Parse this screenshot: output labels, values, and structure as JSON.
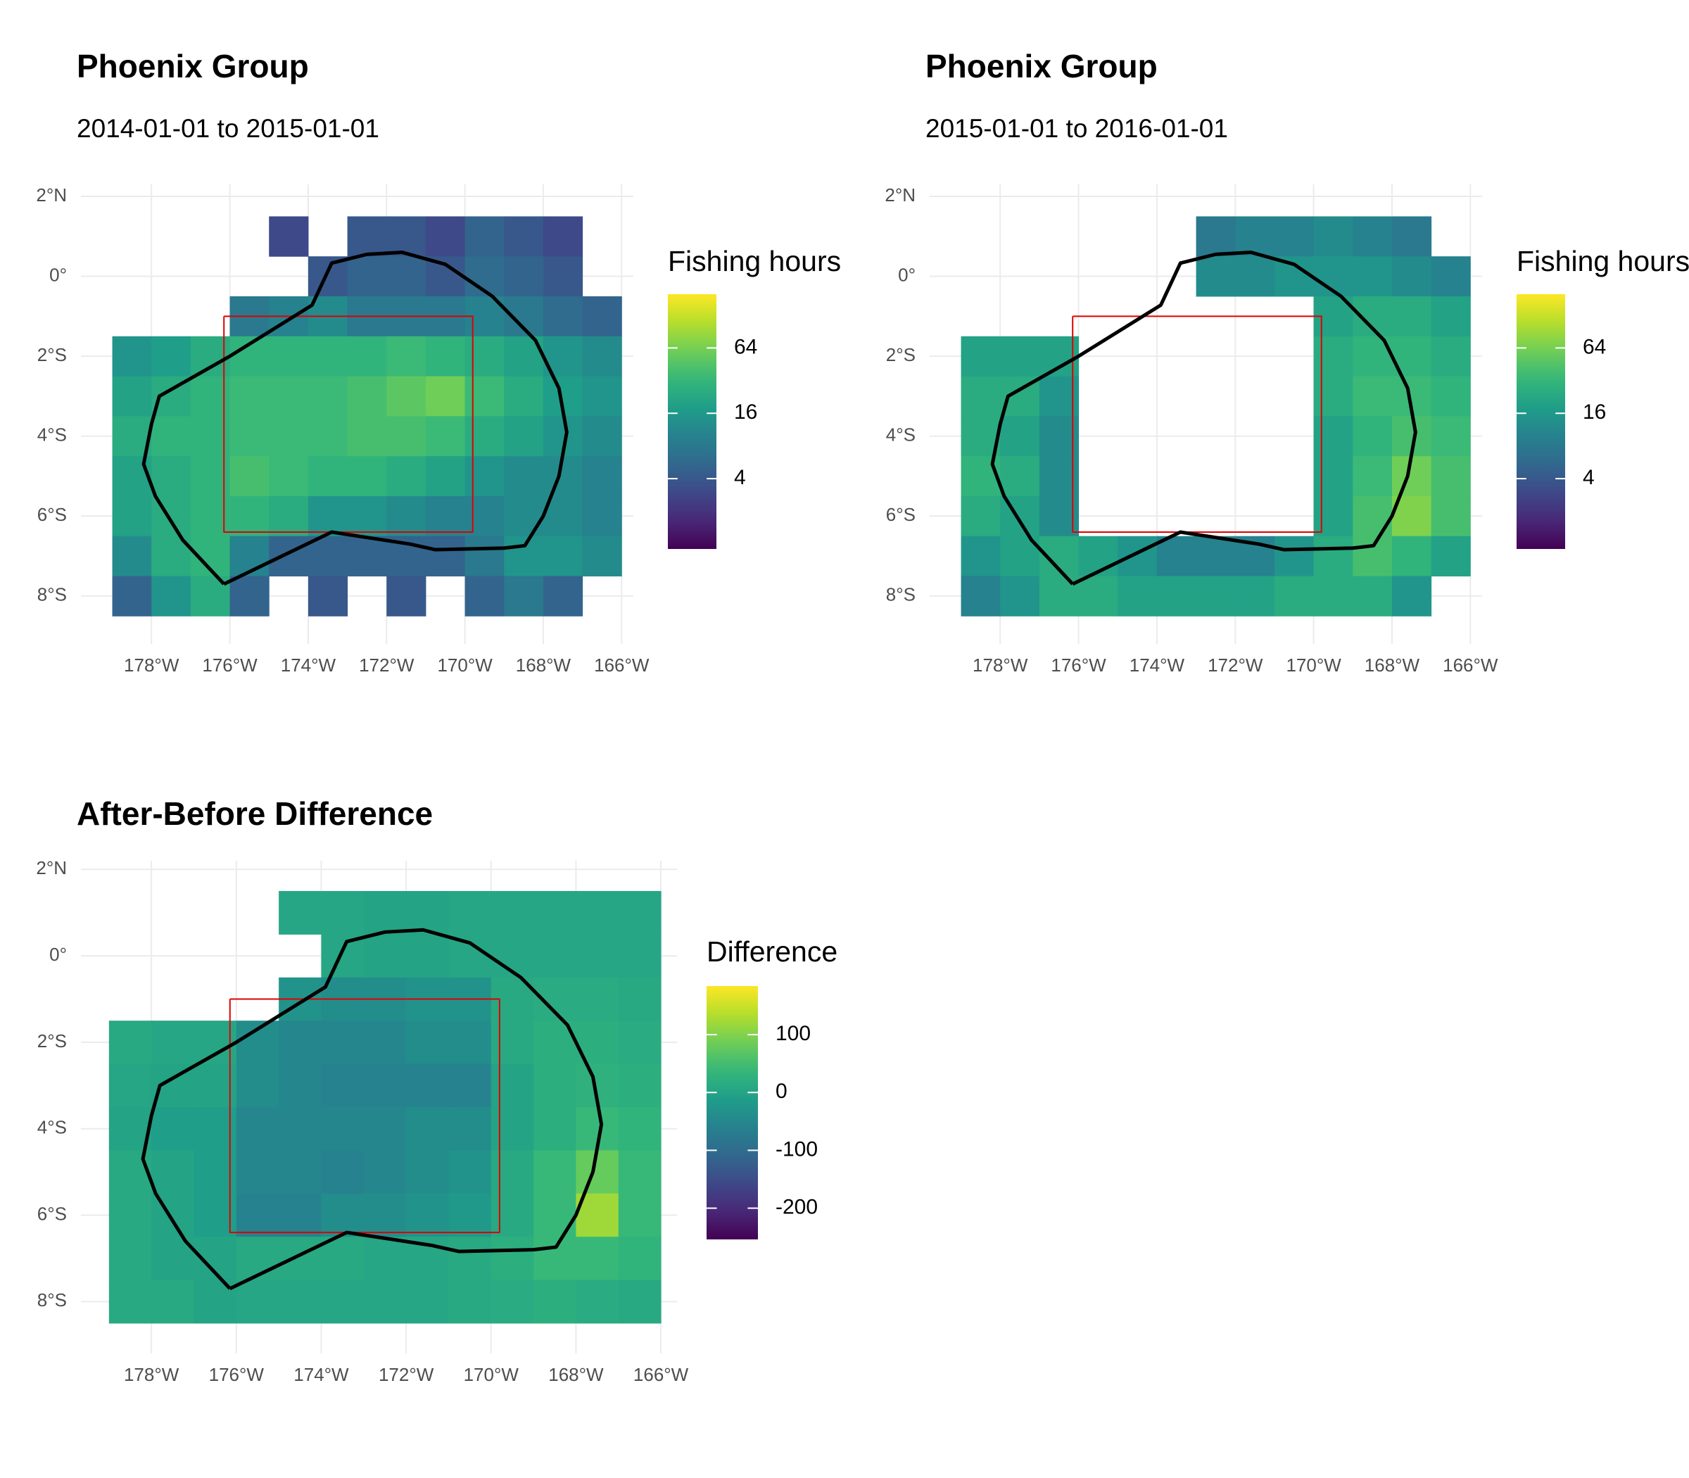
{
  "chart_data": [
    {
      "type": "heatmap",
      "title": "Phoenix Group",
      "subtitle": "2014-01-01 to 2015-01-01",
      "x": [
        -178.5,
        -177.5,
        -176.5,
        -175.5,
        -174.5,
        -173.5,
        -172.5,
        -171.5,
        -170.5,
        -169.5,
        -168.5,
        -167.5,
        -166.5
      ],
      "y": [
        1,
        0,
        -1,
        -2,
        -3,
        -4,
        -5,
        -6,
        -7,
        -8
      ],
      "values": [
        [
          null,
          null,
          null,
          null,
          3,
          null,
          4,
          4,
          3,
          5,
          4,
          3,
          null
        ],
        [
          null,
          null,
          null,
          null,
          null,
          4,
          5,
          5,
          4,
          6,
          5,
          4,
          null
        ],
        [
          null,
          null,
          null,
          8,
          10,
          12,
          8,
          8,
          8,
          10,
          8,
          6,
          5
        ],
        [
          15,
          18,
          25,
          30,
          30,
          30,
          30,
          35,
          30,
          25,
          20,
          15,
          12
        ],
        [
          20,
          25,
          30,
          35,
          35,
          35,
          40,
          50,
          60,
          35,
          25,
          18,
          15
        ],
        [
          25,
          30,
          30,
          35,
          35,
          35,
          40,
          40,
          35,
          25,
          20,
          15,
          12
        ],
        [
          20,
          25,
          30,
          40,
          35,
          30,
          30,
          25,
          20,
          15,
          12,
          12,
          10
        ],
        [
          20,
          25,
          30,
          30,
          25,
          15,
          15,
          12,
          10,
          10,
          12,
          12,
          10
        ],
        [
          12,
          25,
          30,
          10,
          5,
          5,
          5,
          5,
          5,
          8,
          15,
          15,
          12
        ],
        [
          5,
          15,
          25,
          5,
          null,
          4,
          null,
          4,
          null,
          5,
          8,
          5,
          null
        ]
      ],
      "xlim": [
        -179.8,
        -165.7
      ],
      "ylim": [
        -9.2,
        2.3
      ],
      "xticks": [
        {
          "value": -178,
          "label": "178°W"
        },
        {
          "value": -176,
          "label": "176°W"
        },
        {
          "value": -174,
          "label": "174°W"
        },
        {
          "value": -172,
          "label": "172°W"
        },
        {
          "value": -170,
          "label": "170°W"
        },
        {
          "value": -168,
          "label": "168°W"
        },
        {
          "value": -166,
          "label": "166°W"
        }
      ],
      "yticks": [
        {
          "value": 2,
          "label": "2°N"
        },
        {
          "value": 0,
          "label": "0°"
        },
        {
          "value": -2,
          "label": "2°S"
        },
        {
          "value": -4,
          "label": "4°S"
        },
        {
          "value": -6,
          "label": "6°S"
        },
        {
          "value": -8,
          "label": "8°S"
        }
      ],
      "legend_title": "Fishing hours",
      "color_scale": "viridis",
      "log_scale": true,
      "clim": [
        0.9,
        200
      ],
      "cticks": [
        4,
        16,
        64
      ],
      "grid": true
    },
    {
      "type": "heatmap",
      "title": "Phoenix Group",
      "subtitle": "2015-01-01 to 2016-01-01",
      "x": [
        -178.5,
        -177.5,
        -176.5,
        -175.5,
        -174.5,
        -173.5,
        -172.5,
        -171.5,
        -170.5,
        -169.5,
        -168.5,
        -167.5,
        -166.5
      ],
      "y": [
        1,
        0,
        -1,
        -2,
        -3,
        -4,
        -5,
        -6,
        -7,
        -8
      ],
      "values": [
        [
          null,
          null,
          null,
          null,
          null,
          null,
          8,
          10,
          10,
          12,
          10,
          8,
          null
        ],
        [
          null,
          null,
          null,
          null,
          null,
          null,
          12,
          12,
          15,
          15,
          15,
          12,
          10
        ],
        [
          null,
          null,
          null,
          null,
          null,
          null,
          null,
          null,
          null,
          20,
          25,
          25,
          20
        ],
        [
          20,
          20,
          20,
          null,
          null,
          null,
          null,
          null,
          null,
          25,
          30,
          30,
          25
        ],
        [
          25,
          25,
          15,
          null,
          null,
          null,
          null,
          null,
          null,
          25,
          35,
          35,
          30
        ],
        [
          25,
          20,
          12,
          null,
          null,
          null,
          null,
          null,
          null,
          20,
          30,
          40,
          35
        ],
        [
          30,
          25,
          12,
          null,
          null,
          null,
          null,
          null,
          null,
          20,
          35,
          60,
          40
        ],
        [
          25,
          20,
          12,
          null,
          null,
          null,
          null,
          null,
          null,
          20,
          40,
          70,
          40
        ],
        [
          15,
          20,
          25,
          20,
          15,
          10,
          10,
          10,
          15,
          25,
          40,
          30,
          20
        ],
        [
          10,
          15,
          25,
          25,
          20,
          20,
          20,
          20,
          25,
          25,
          25,
          15,
          null
        ]
      ],
      "xlim": [
        -179.8,
        -165.7
      ],
      "ylim": [
        -9.2,
        2.3
      ],
      "xticks": [
        {
          "value": -178,
          "label": "178°W"
        },
        {
          "value": -176,
          "label": "176°W"
        },
        {
          "value": -174,
          "label": "174°W"
        },
        {
          "value": -172,
          "label": "172°W"
        },
        {
          "value": -170,
          "label": "170°W"
        },
        {
          "value": -168,
          "label": "168°W"
        },
        {
          "value": -166,
          "label": "166°W"
        }
      ],
      "yticks": [
        {
          "value": 2,
          "label": "2°N"
        },
        {
          "value": 0,
          "label": "0°"
        },
        {
          "value": -2,
          "label": "2°S"
        },
        {
          "value": -4,
          "label": "4°S"
        },
        {
          "value": -6,
          "label": "6°S"
        },
        {
          "value": -8,
          "label": "8°S"
        }
      ],
      "legend_title": "Fishing hours",
      "color_scale": "viridis",
      "log_scale": true,
      "clim": [
        0.9,
        200
      ],
      "cticks": [
        4,
        16,
        64
      ],
      "grid": true
    },
    {
      "type": "heatmap",
      "title": "After-Before Difference",
      "x": [
        -178.5,
        -177.5,
        -176.5,
        -175.5,
        -174.5,
        -173.5,
        -172.5,
        -171.5,
        -170.5,
        -169.5,
        -168.5,
        -167.5,
        -166.5
      ],
      "y": [
        1,
        0,
        -1,
        -2,
        -3,
        -4,
        -5,
        -6,
        -7,
        -8
      ],
      "values": [
        [
          null,
          null,
          null,
          null,
          5,
          5,
          0,
          0,
          5,
          5,
          5,
          5,
          5
        ],
        [
          null,
          null,
          null,
          null,
          null,
          5,
          0,
          0,
          5,
          5,
          5,
          5,
          5
        ],
        [
          null,
          null,
          null,
          null,
          -30,
          -40,
          -40,
          -30,
          -30,
          10,
          15,
          15,
          10
        ],
        [
          10,
          5,
          5,
          -40,
          -50,
          -50,
          -50,
          -40,
          -40,
          10,
          20,
          20,
          15
        ],
        [
          5,
          0,
          0,
          -40,
          -50,
          -60,
          -60,
          -60,
          -60,
          0,
          20,
          25,
          20
        ],
        [
          0,
          -10,
          -10,
          -50,
          -50,
          -50,
          -50,
          -40,
          -40,
          0,
          20,
          40,
          30
        ],
        [
          10,
          0,
          -10,
          -50,
          -50,
          -60,
          -50,
          -40,
          -30,
          10,
          40,
          80,
          40
        ],
        [
          10,
          0,
          -10,
          -60,
          -60,
          -40,
          -40,
          -30,
          -20,
          10,
          40,
          120,
          40
        ],
        [
          10,
          0,
          0,
          10,
          10,
          10,
          5,
          5,
          10,
          20,
          40,
          40,
          30
        ],
        [
          10,
          10,
          0,
          5,
          5,
          5,
          5,
          5,
          10,
          15,
          20,
          15,
          10
        ]
      ],
      "xlim": [
        -179.66,
        -165.62
      ],
      "ylim": [
        -9.2,
        2.2
      ],
      "xticks": [
        {
          "value": -178,
          "label": "178°W"
        },
        {
          "value": -176,
          "label": "176°W"
        },
        {
          "value": -174,
          "label": "174°W"
        },
        {
          "value": -172,
          "label": "172°W"
        },
        {
          "value": -170,
          "label": "170°W"
        },
        {
          "value": -168,
          "label": "168°W"
        },
        {
          "value": -166,
          "label": "166°W"
        }
      ],
      "yticks": [
        {
          "value": 2,
          "label": "2°N"
        },
        {
          "value": 0,
          "label": "0°"
        },
        {
          "value": -2,
          "label": "2°S"
        },
        {
          "value": -4,
          "label": "4°S"
        },
        {
          "value": -6,
          "label": "6°S"
        },
        {
          "value": -8,
          "label": "8°S"
        }
      ],
      "legend_title": "Difference",
      "color_scale": "viridis",
      "log_scale": false,
      "clim": [
        -254,
        184
      ],
      "cticks": [
        -200,
        -100,
        0,
        100
      ],
      "grid": true
    }
  ],
  "boundaries": {
    "eez": [
      [
        -176.15,
        -7.7
      ],
      [
        -177.2,
        -6.6
      ],
      [
        -177.9,
        -5.5
      ],
      [
        -178.2,
        -4.7
      ],
      [
        -178.0,
        -3.7
      ],
      [
        -177.8,
        -3.0
      ],
      [
        -176.0,
        -2.0
      ],
      [
        -173.9,
        -0.72
      ],
      [
        -173.4,
        0.33
      ],
      [
        -172.5,
        0.55
      ],
      [
        -171.6,
        0.6
      ],
      [
        -170.5,
        0.3
      ],
      [
        -169.3,
        -0.5
      ],
      [
        -168.2,
        -1.6
      ],
      [
        -167.6,
        -2.8
      ],
      [
        -167.4,
        -3.9
      ],
      [
        -167.6,
        -5.0
      ],
      [
        -168.0,
        -6.0
      ],
      [
        -168.47,
        -6.74
      ],
      [
        -169.0,
        -6.8
      ],
      [
        -170.76,
        -6.84
      ],
      [
        -171.4,
        -6.7
      ],
      [
        -173.4,
        -6.4
      ],
      [
        -176.15,
        -7.7
      ]
    ],
    "reserve": [
      [
        -176.15,
        -1.0
      ],
      [
        -169.8,
        -1.0
      ],
      [
        -169.8,
        -6.4
      ],
      [
        -176.15,
        -6.4
      ],
      [
        -176.15,
        -1.0
      ]
    ],
    "eez_color": "#000000",
    "reserve_color": "#e00000"
  }
}
